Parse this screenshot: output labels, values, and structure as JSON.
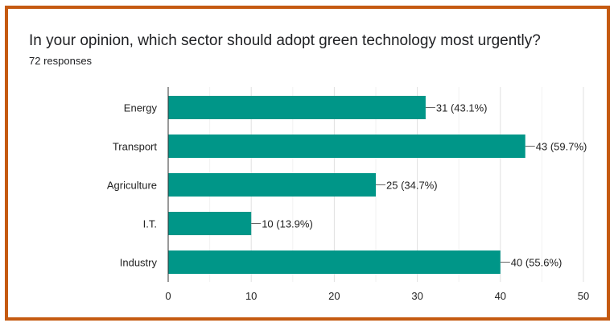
{
  "chart_data": {
    "type": "bar",
    "orientation": "horizontal",
    "title": "In your opinion, which sector should adopt green technology most urgently?",
    "subtitle": "72 responses",
    "categories": [
      "Energy",
      "Transport",
      "Agriculture",
      "I.T.",
      "Industry"
    ],
    "values": [
      31,
      43,
      25,
      10,
      40
    ],
    "data_labels": [
      "31 (43.1%)",
      "43 (59.7%)",
      "25 (34.7%)",
      "10 (13.9%)",
      "40 (55.6%)"
    ],
    "xlim": [
      0,
      50
    ],
    "xticks": [
      "0",
      "10",
      "20",
      "30",
      "40",
      "50"
    ],
    "grid": true,
    "bar_color": "#009688",
    "border_color": "#C55A11"
  }
}
